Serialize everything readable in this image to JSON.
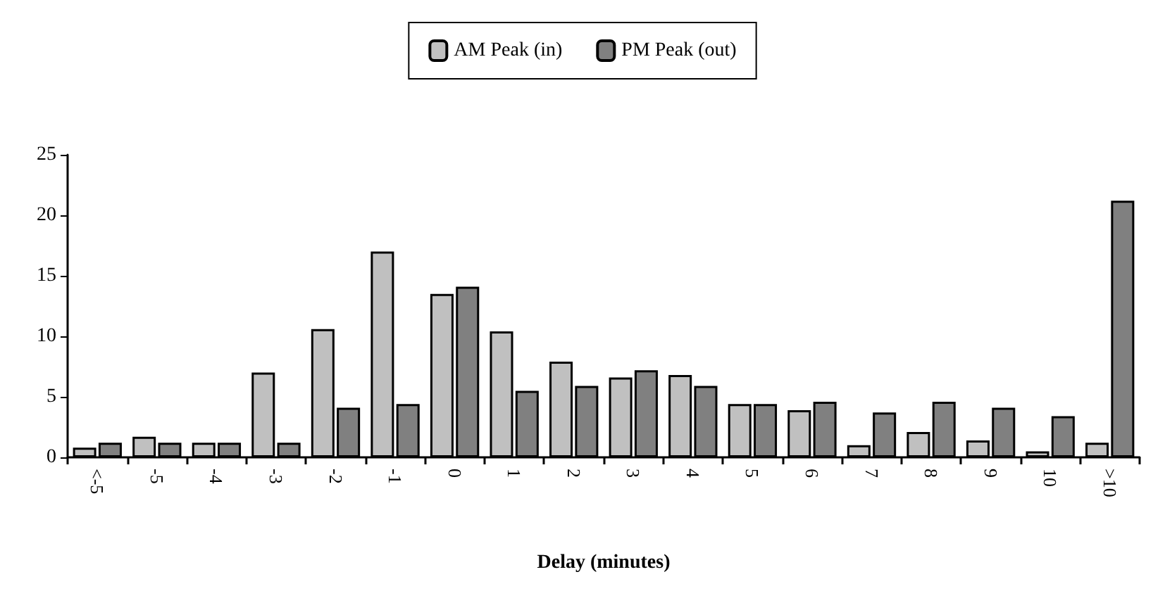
{
  "chart_data": {
    "type": "bar",
    "xlabel": "Delay (minutes)",
    "categories": [
      "<-5",
      "-5",
      "-4",
      "-3",
      "-2",
      "-1",
      "0",
      "1",
      "2",
      "3",
      "4",
      "5",
      "6",
      "7",
      "8",
      "9",
      "10",
      ">10"
    ],
    "series": [
      {
        "name": "AM Peak (in)",
        "color": "#c0c0c0",
        "values": [
          0.8,
          1.7,
          1.2,
          7.0,
          10.6,
          17.0,
          13.5,
          10.4,
          7.9,
          6.6,
          6.8,
          4.4,
          3.9,
          1.0,
          2.1,
          1.4,
          0.5,
          1.2
        ]
      },
      {
        "name": "PM Peak (out)",
        "color": "#808080",
        "values": [
          1.2,
          1.2,
          1.2,
          1.2,
          4.1,
          4.4,
          14.1,
          5.5,
          5.9,
          7.2,
          5.9,
          4.4,
          4.6,
          3.7,
          4.6,
          4.1,
          3.4,
          21.2
        ]
      }
    ],
    "ylim": [
      0,
      25
    ],
    "yticks": [
      0,
      5,
      10,
      15,
      20,
      25
    ],
    "grid": false,
    "legend": "top"
  }
}
